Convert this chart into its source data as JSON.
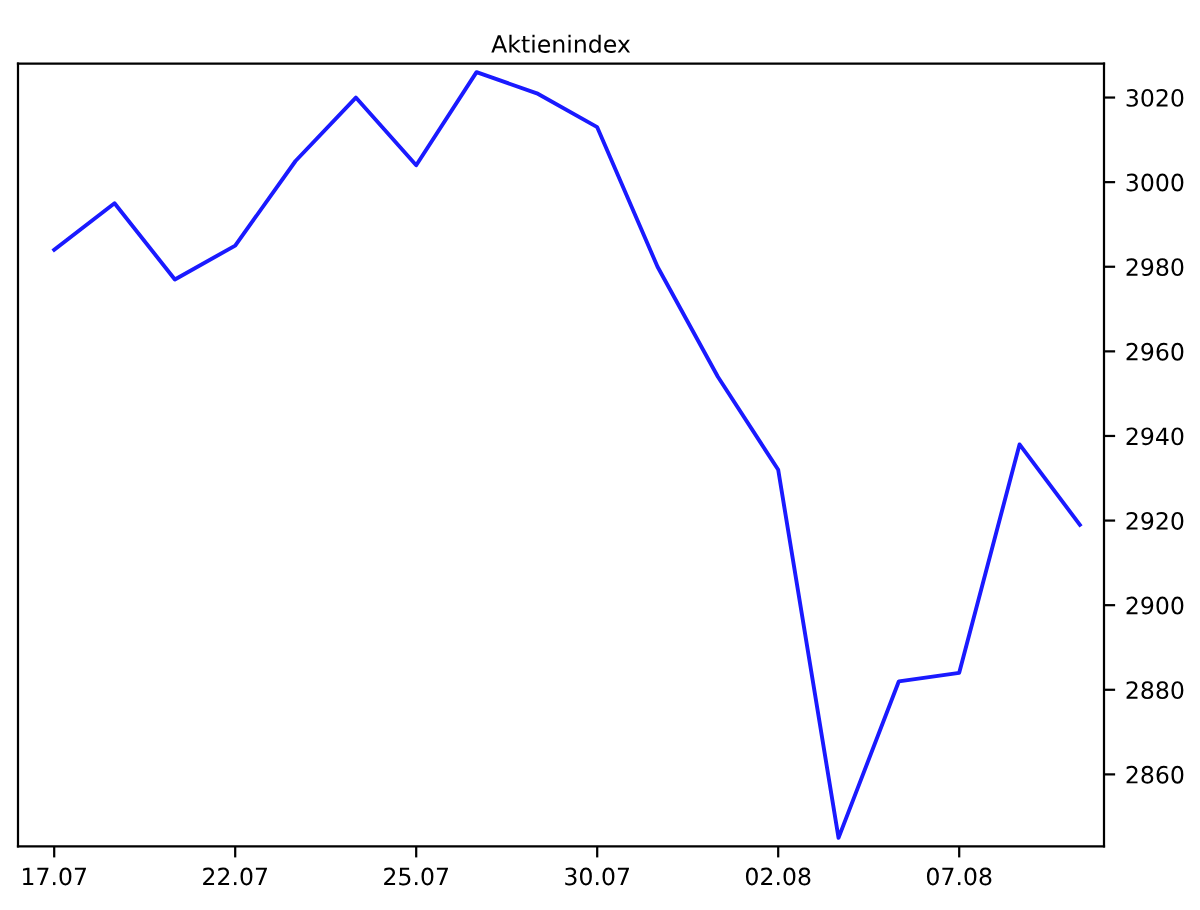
{
  "chart_data": {
    "type": "line",
    "title": "Aktienindex",
    "categories": [
      "17.07",
      null,
      null,
      "22.07",
      null,
      null,
      "25.07",
      null,
      null,
      "30.07",
      null,
      null,
      "02.08",
      null,
      null,
      "07.08",
      null,
      null
    ],
    "series": [
      {
        "color": "#1a1aff",
        "values": [
          2984,
          2995,
          2977,
          2985,
          3005,
          3020,
          3004,
          3026,
          3021,
          3013,
          2980,
          2954,
          2932,
          2845,
          2882,
          2884,
          2938,
          2919
        ]
      }
    ],
    "ylim": [
      2843,
      3028
    ],
    "yticks": [
      2860,
      2880,
      2900,
      2920,
      2940,
      2960,
      2980,
      3000,
      3020
    ],
    "grid": false,
    "legend": false,
    "marker": "none",
    "line_style": "solid"
  }
}
